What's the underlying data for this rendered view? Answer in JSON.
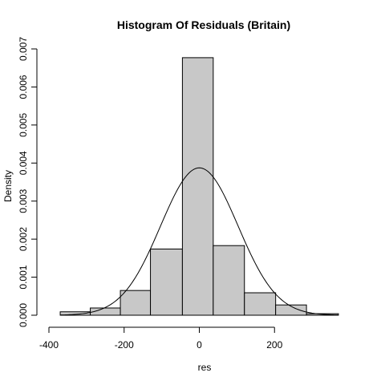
{
  "chart_data": {
    "type": "bar",
    "title": "Histogram Of Residuals (Britain)",
    "xlabel": "res",
    "ylabel": "Density",
    "xlim": [
      -400,
      400
    ],
    "ylim": [
      0,
      0.007
    ],
    "x_ticks": [
      -400,
      -200,
      0,
      200
    ],
    "y_ticks": [
      0.0,
      0.001,
      0.002,
      0.003,
      0.004,
      0.005,
      0.006,
      0.007
    ],
    "x_tick_labels": [
      "-400",
      "-200",
      "0",
      "200"
    ],
    "y_tick_labels": [
      "0.000",
      "0.001",
      "0.002",
      "0.003",
      "0.004",
      "0.005",
      "0.006",
      "0.007"
    ],
    "bins": [
      {
        "x0": -370,
        "x1": -290,
        "density": 9e-05
      },
      {
        "x0": -290,
        "x1": -210,
        "density": 0.00019
      },
      {
        "x0": -210,
        "x1": -130,
        "density": 0.00065
      },
      {
        "x0": -130,
        "x1": -45,
        "density": 0.00174
      },
      {
        "x0": -45,
        "x1": 37,
        "density": 0.00677
      },
      {
        "x0": 37,
        "x1": 120,
        "density": 0.00183
      },
      {
        "x0": 120,
        "x1": 203,
        "density": 0.00059
      },
      {
        "x0": 203,
        "x1": 285,
        "density": 0.00027
      },
      {
        "x0": 285,
        "x1": 370,
        "density": 4e-05
      }
    ],
    "normal_curve": {
      "mean": 0,
      "sd": 103,
      "x_range": [
        -370,
        370
      ]
    },
    "grid": false,
    "legend": "none"
  }
}
